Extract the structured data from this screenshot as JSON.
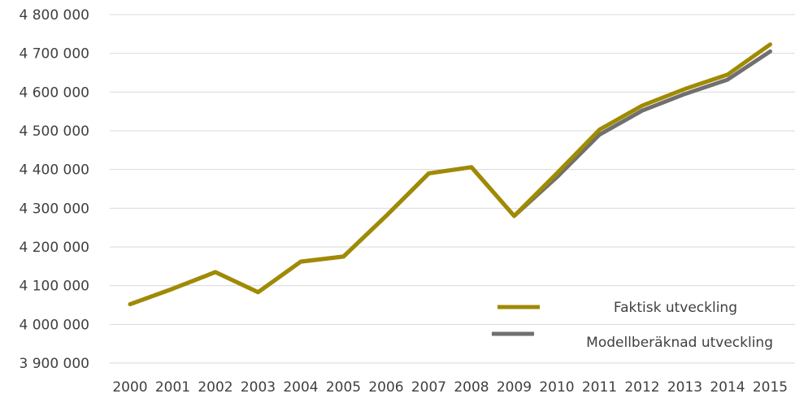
{
  "chart_data": {
    "type": "line",
    "title": "",
    "xlabel": "",
    "ylabel": "",
    "x": [
      "2000",
      "2001",
      "2002",
      "2003",
      "2004",
      "2005",
      "2006",
      "2007",
      "2008",
      "2009",
      "2010",
      "2011",
      "2012",
      "2013",
      "2014",
      "2015"
    ],
    "ylim": [
      3900000,
      4800000
    ],
    "yticks": [
      3900000,
      4000000,
      4100000,
      4200000,
      4300000,
      4400000,
      4500000,
      4600000,
      4700000,
      4800000
    ],
    "ytick_labels": [
      "3 900 000",
      "4 000 000",
      "4 100 000",
      "4 200 000",
      "4 300 000",
      "4 400 000",
      "4 500 000",
      "4 600 000",
      "4 700 000",
      "4 800 000"
    ],
    "grid": "horizontal",
    "legend_position": "bottom-right",
    "series": [
      {
        "name": "Modellberäknad utveckling",
        "color": "#707070",
        "values": [
          4052000,
          4092000,
          4135000,
          4083000,
          4162000,
          4175000,
          4280000,
          4390000,
          4406000,
          4280000,
          4380000,
          4490000,
          4552000,
          4595000,
          4632000,
          4705000
        ]
      },
      {
        "name": "Faktisk utveckling",
        "color": "#a08a00",
        "values": [
          4052000,
          4092000,
          4135000,
          4083000,
          4162000,
          4175000,
          4280000,
          4390000,
          4406000,
          4280000,
          4390000,
          4503000,
          4565000,
          4608000,
          4645000,
          4723000
        ]
      }
    ],
    "legend": [
      {
        "name": "Faktisk utveckling",
        "color": "#a08a00"
      },
      {
        "name": "Modellberäknad utveckling",
        "color": "#707070"
      }
    ]
  }
}
